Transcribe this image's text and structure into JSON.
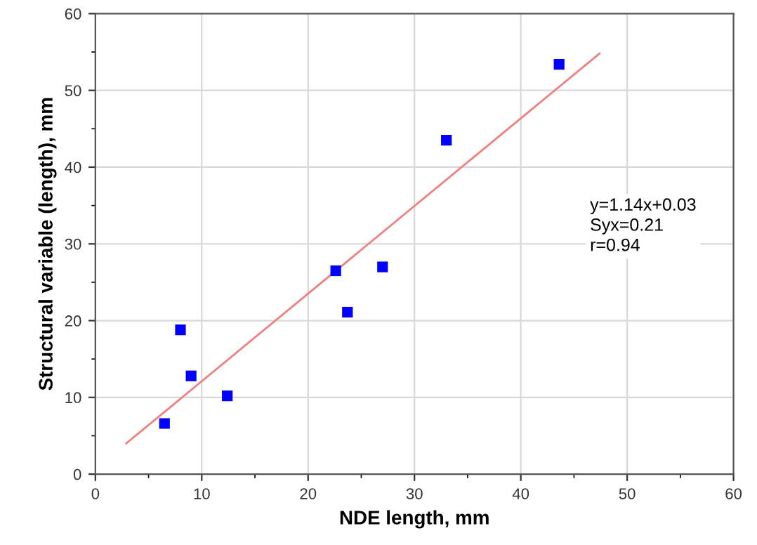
{
  "chart_data": {
    "type": "scatter",
    "xlabel": "NDE length, mm",
    "ylabel": "Structural variable (length), mm",
    "annotations": [
      "y=1.14x+0.03\nSyx=0.21\nr=0.94"
    ],
    "xlim": [
      0,
      60
    ],
    "ylim": [
      0,
      60
    ],
    "xticks": [
      0,
      10,
      20,
      30,
      40,
      50,
      60
    ],
    "yticks": [
      0,
      10,
      20,
      30,
      40,
      50,
      60
    ],
    "grid": true,
    "marker": "square",
    "series": [
      {
        "color": "#0000ff",
        "x": [
          6.5,
          8,
          9,
          12.4,
          22.6,
          23.7,
          27,
          33,
          43.6
        ],
        "values": [
          6.6,
          18.8,
          12.8,
          10.2,
          26.5,
          21.1,
          27,
          43.5,
          53.4
        ]
      },
      {
        "type": "line",
        "color": "#f08080",
        "x": [
          2.9,
          47.4
        ],
        "values": [
          4.0,
          54.8
        ],
        "marker": "none"
      }
    ]
  }
}
